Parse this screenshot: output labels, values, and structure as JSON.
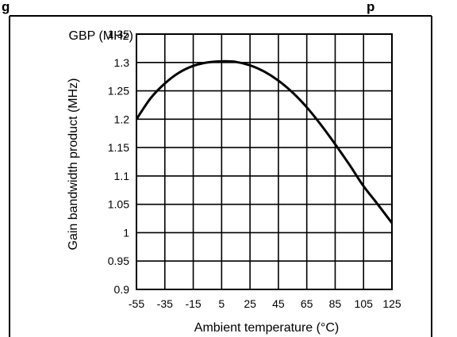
{
  "figure": {
    "title_fragment": "g",
    "title_fragment_right": "p"
  },
  "chart_data": {
    "type": "line",
    "ylabel": "Gain bandwidth product (MHz)",
    "ylabel_top": "GBP (MHz)",
    "xlabel": "Ambient temperature (°C)",
    "xlim": [
      -55,
      125
    ],
    "ylim": [
      0.9,
      1.35
    ],
    "grid": true,
    "x_ticks": [
      -55,
      -35,
      -15,
      5,
      25,
      45,
      65,
      85,
      105,
      125
    ],
    "x_tick_labels": [
      "-55",
      "-35",
      "-15",
      "5",
      "25",
      "45",
      "65",
      "85",
      "105",
      "125"
    ],
    "y_ticks": [
      0.9,
      0.95,
      1,
      1.05,
      1.1,
      1.15,
      1.2,
      1.25,
      1.3,
      1.35
    ],
    "y_tick_labels": [
      "0.9",
      "0.95",
      "1",
      "1.05",
      "1.1",
      "1.15",
      "1.2",
      "1.25",
      "1.3",
      "1.35"
    ],
    "series": [
      {
        "color": "#000000",
        "x": [
          -55,
          -45,
          -35,
          -25,
          -15,
          -5,
          5,
          15,
          25,
          35,
          45,
          55,
          65,
          75,
          85,
          95,
          105,
          115,
          125
        ],
        "y": [
          1.2,
          1.237,
          1.263,
          1.282,
          1.294,
          1.3,
          1.302,
          1.301,
          1.295,
          1.284,
          1.268,
          1.247,
          1.221,
          1.19,
          1.156,
          1.12,
          1.082,
          1.05,
          1.017
        ]
      }
    ]
  }
}
